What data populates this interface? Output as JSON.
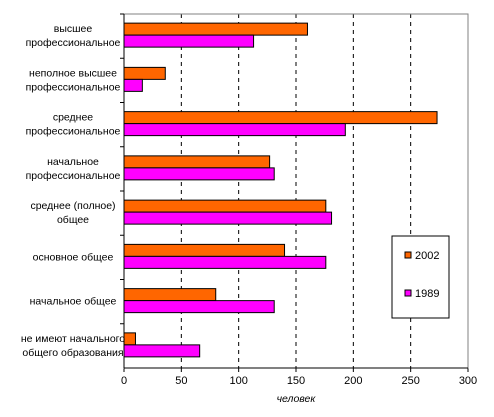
{
  "chart_data": {
    "type": "bar",
    "orientation": "horizontal",
    "categories": [
      [
        "высшее",
        "профессиональное"
      ],
      [
        "неполное высшее",
        "профессиональное"
      ],
      [
        "среднее",
        "профессиональное"
      ],
      [
        "начальное",
        "профессиональное"
      ],
      [
        "среднее (полное)",
        "общее"
      ],
      [
        "основное общее"
      ],
      [
        "начальное общее"
      ],
      [
        "не имеют начального",
        "общего образования"
      ]
    ],
    "series": [
      {
        "name": "2002",
        "color": "#FF6600",
        "values": [
          160,
          36,
          273,
          127,
          176,
          140,
          80,
          10
        ]
      },
      {
        "name": "1989",
        "color": "#FF00FF",
        "values": [
          113,
          16,
          193,
          131,
          181,
          176,
          131,
          66
        ]
      }
    ],
    "xlabel": "человек",
    "xlim": [
      0,
      300
    ],
    "xticks": [
      "0",
      "50",
      "100",
      "150",
      "200",
      "250",
      "300"
    ],
    "grid": "vertical-dashed",
    "legend": {
      "placement": "right",
      "order": [
        "2002",
        "1989"
      ]
    }
  }
}
